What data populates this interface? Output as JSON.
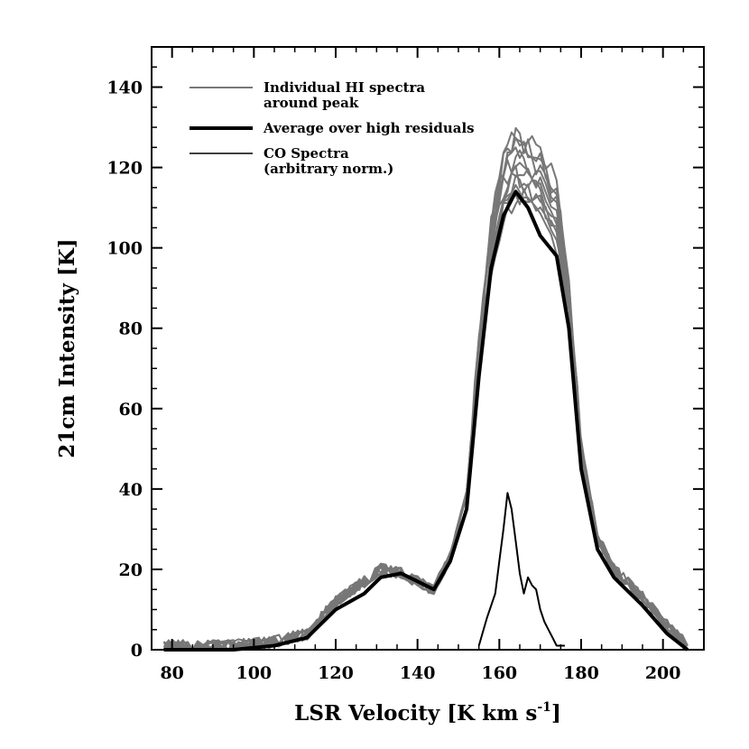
{
  "chart_data": {
    "type": "line",
    "xlabel": "LSR Velocity [K km s",
    "xlabel_sup": "-1",
    "xlabel_end": "]",
    "ylabel": "21cm Intensity [K]",
    "xlim": [
      75,
      210
    ],
    "ylim": [
      0,
      150
    ],
    "x_ticks": [
      80,
      100,
      120,
      140,
      160,
      180,
      200
    ],
    "x_tick_labels": [
      "80",
      "100",
      "120",
      "140",
      "160",
      "180",
      "200"
    ],
    "y_ticks": [
      0,
      20,
      40,
      60,
      80,
      100,
      120,
      140
    ],
    "y_tick_labels": [
      "0",
      "20",
      "40",
      "60",
      "80",
      "100",
      "120",
      "140"
    ],
    "grid": false,
    "legend_position": "top-left",
    "legend": [
      {
        "label_lines": [
          "Individual HI spectra",
          "around peak"
        ],
        "color": "#777777",
        "width": 2
      },
      {
        "label_lines": [
          "Average over high residuals"
        ],
        "color": "#000000",
        "width": 4
      },
      {
        "label_lines": [
          "CO Spectra",
          "(arbitrary norm.)"
        ],
        "color": "#000000",
        "width": 1.5
      }
    ],
    "series": [
      {
        "name": "Average over high residuals",
        "color": "#000000",
        "x": [
          78,
          85,
          95,
          105,
          113,
          120,
          127,
          131,
          136,
          140,
          144,
          148,
          152,
          155,
          158,
          161,
          164,
          167,
          170,
          174,
          177,
          180,
          184,
          188,
          195,
          201,
          206
        ],
        "y": [
          0,
          0,
          0,
          1,
          3,
          10,
          14,
          18,
          19,
          17,
          15,
          22,
          35,
          68,
          95,
          108,
          114,
          110,
          103,
          98,
          80,
          45,
          25,
          18,
          11,
          4,
          0
        ]
      },
      {
        "name": "CO Spectra (arbitrary norm.)",
        "color": "#000000",
        "x": [
          155,
          157,
          159,
          160,
          161,
          162,
          163,
          164,
          165,
          166,
          167,
          168,
          169,
          170,
          171,
          172,
          173,
          174,
          176
        ],
        "y": [
          1,
          8,
          14,
          22,
          30,
          39,
          35,
          27,
          19,
          14,
          18,
          16,
          15,
          10,
          7,
          5,
          3,
          1,
          1
        ]
      }
    ],
    "individual_spectra": {
      "name": "Individual HI spectra around peak",
      "color": "#777777",
      "count": 12,
      "base_x": [
        78,
        85,
        95,
        105,
        113,
        120,
        127,
        131,
        136,
        140,
        144,
        148,
        152,
        155,
        158,
        161,
        164,
        167,
        170,
        174,
        177,
        180,
        184,
        188,
        195,
        201,
        206
      ],
      "base_y": [
        1,
        1,
        1,
        2,
        4,
        12,
        17,
        20,
        19,
        17,
        15,
        23,
        38,
        72,
        100,
        115,
        120,
        118,
        115,
        108,
        86,
        50,
        28,
        20,
        13,
        6,
        1
      ],
      "peak_range": [
        112,
        129
      ]
    }
  }
}
